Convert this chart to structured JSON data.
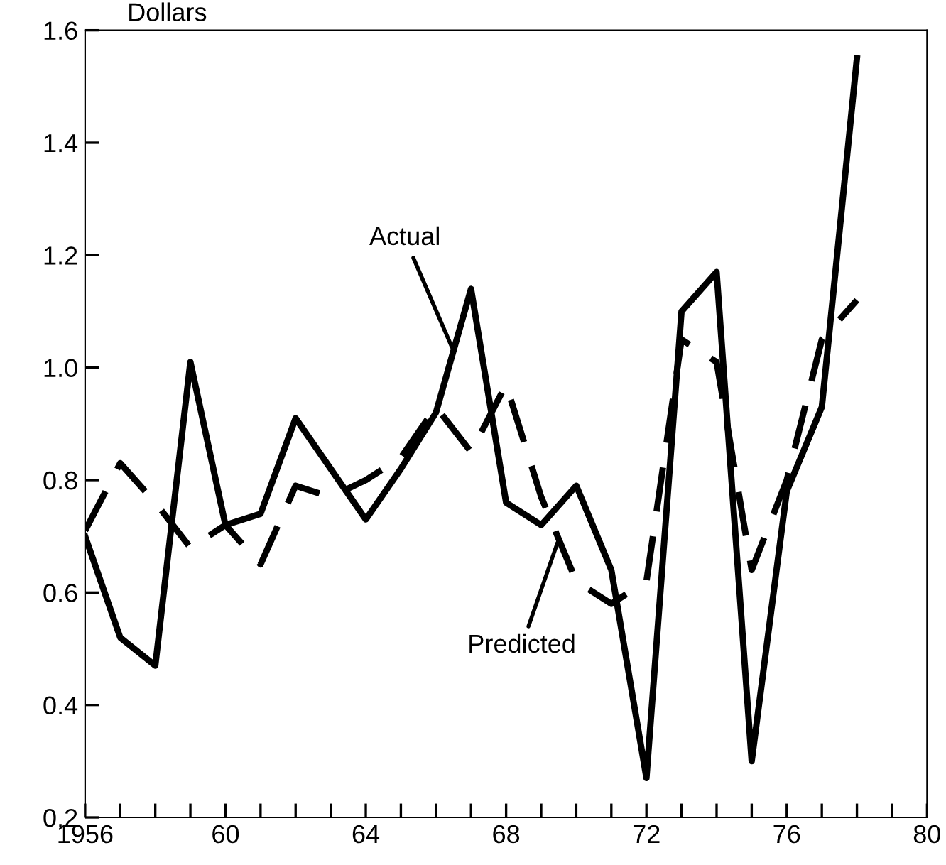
{
  "chart_data": {
    "type": "line",
    "ylabel": "Dollars",
    "x": [
      1956,
      1957,
      1958,
      1959,
      1960,
      1961,
      1962,
      1963,
      1964,
      1965,
      1966,
      1967,
      1968,
      1969,
      1970,
      1971,
      1972,
      1973,
      1974,
      1975,
      1976,
      1977,
      1978
    ],
    "series": [
      {
        "name": "Actual",
        "color": "#000000",
        "line_style": "solid",
        "values": [
          0.7,
          0.52,
          0.47,
          1.01,
          0.72,
          0.74,
          0.91,
          0.82,
          0.73,
          0.82,
          0.92,
          1.14,
          0.76,
          0.72,
          0.79,
          0.64,
          0.27,
          1.1,
          1.17,
          0.3,
          0.78,
          0.93,
          1.55
        ]
      },
      {
        "name": "Predicted",
        "color": "#000000",
        "line_style": "dashed",
        "values": [
          0.71,
          0.83,
          0.76,
          0.68,
          0.72,
          0.65,
          0.79,
          0.77,
          0.8,
          0.84,
          0.93,
          0.85,
          0.97,
          0.77,
          0.62,
          0.58,
          0.62,
          1.05,
          1.01,
          0.64,
          0.8,
          1.05,
          1.12
        ]
      }
    ],
    "xlim": [
      1956,
      1980
    ],
    "ylim": [
      0.2,
      1.6
    ],
    "xticks": [
      {
        "value": 1956,
        "label": "1956"
      },
      {
        "value": 1957,
        "label": null
      },
      {
        "value": 1958,
        "label": null
      },
      {
        "value": 1959,
        "label": null
      },
      {
        "value": 1960,
        "label": "60"
      },
      {
        "value": 1961,
        "label": null
      },
      {
        "value": 1962,
        "label": null
      },
      {
        "value": 1963,
        "label": null
      },
      {
        "value": 1964,
        "label": "64"
      },
      {
        "value": 1965,
        "label": null
      },
      {
        "value": 1966,
        "label": null
      },
      {
        "value": 1967,
        "label": null
      },
      {
        "value": 1968,
        "label": "68"
      },
      {
        "value": 1969,
        "label": null
      },
      {
        "value": 1970,
        "label": null
      },
      {
        "value": 1971,
        "label": null
      },
      {
        "value": 1972,
        "label": "72"
      },
      {
        "value": 1973,
        "label": null
      },
      {
        "value": 1974,
        "label": null
      },
      {
        "value": 1975,
        "label": null
      },
      {
        "value": 1976,
        "label": "76"
      },
      {
        "value": 1977,
        "label": null
      },
      {
        "value": 1978,
        "label": null
      },
      {
        "value": 1979,
        "label": null
      },
      {
        "value": 1980,
        "label": "80"
      }
    ],
    "yticks": [
      0.2,
      0.4,
      0.6,
      0.8,
      {
        "value": 1.0,
        "label": "1.0"
      },
      1.2,
      1.4,
      1.6
    ],
    "grid": false,
    "legend": false
  }
}
